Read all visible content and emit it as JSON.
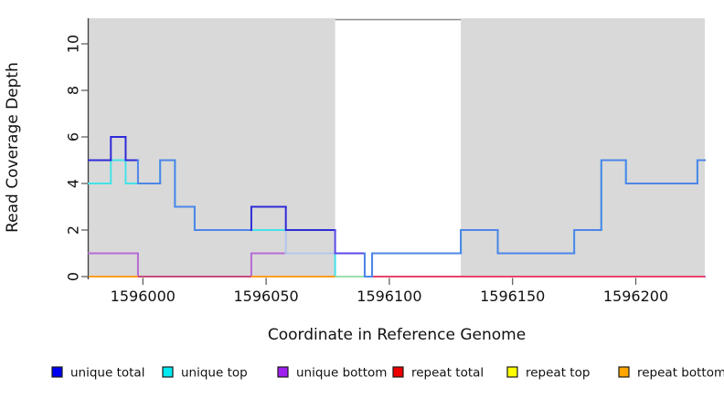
{
  "chart_data": {
    "type": "line",
    "subtype": "step-coverage",
    "title": "",
    "xlabel": "Coordinate in Reference Genome",
    "ylabel": "Read Coverage Depth",
    "xlim": [
      1595978,
      1596228
    ],
    "ylim": [
      0,
      11.1
    ],
    "x_ticks": [
      1596000,
      1596050,
      1596100,
      1596150,
      1596200
    ],
    "y_ticks": [
      0,
      2,
      4,
      6,
      8,
      10
    ],
    "grid": false,
    "legend_position": "bottom",
    "background": "#D9D9D9",
    "highlight_region": {
      "from": 1596078,
      "to": 1596129,
      "fill": "#FFFFFF",
      "border_top": "#8C8C8C"
    },
    "series": [
      {
        "name": "unique total",
        "color": "#0000F0",
        "points": [
          [
            1595978,
            5
          ],
          [
            1595987,
            6
          ],
          [
            1595993,
            5
          ],
          [
            1595998,
            4
          ],
          [
            1596007,
            5
          ],
          [
            1596013,
            3
          ],
          [
            1596021,
            2
          ],
          [
            1596044,
            3
          ],
          [
            1596058,
            2
          ],
          [
            1596078,
            1
          ],
          [
            1596090,
            0
          ],
          [
            1596093,
            1
          ],
          [
            1596129,
            2
          ],
          [
            1596144,
            1
          ],
          [
            1596175,
            2
          ],
          [
            1596186,
            5
          ],
          [
            1596196,
            4
          ],
          [
            1596225,
            5
          ]
        ]
      },
      {
        "name": "unique top",
        "color": "#00E8F0",
        "points": [
          [
            1595978,
            4
          ],
          [
            1595987,
            5
          ],
          [
            1595993,
            4
          ],
          [
            1596007,
            5
          ],
          [
            1596013,
            3
          ],
          [
            1596021,
            2
          ],
          [
            1596058,
            1
          ],
          [
            1596078,
            0
          ],
          [
            1596093,
            1
          ],
          [
            1596129,
            2
          ],
          [
            1596144,
            1
          ],
          [
            1596175,
            2
          ],
          [
            1596186,
            5
          ],
          [
            1596196,
            4
          ],
          [
            1596225,
            5
          ]
        ]
      },
      {
        "name": "unique bottom",
        "color": "#A020F0",
        "points": [
          [
            1595978,
            1
          ],
          [
            1595998,
            0
          ],
          [
            1596044,
            1
          ],
          [
            1596090,
            0
          ]
        ]
      },
      {
        "name": "repeat total",
        "color": "#EE0000",
        "points": [
          [
            1595978,
            0
          ]
        ]
      },
      {
        "name": "repeat top",
        "color": "#FFFF00",
        "points": [
          [
            1595978,
            0
          ]
        ]
      },
      {
        "name": "repeat bottom",
        "color": "#FFA500",
        "points": [
          [
            1595978,
            0
          ]
        ]
      }
    ],
    "rendered_colors": {
      "blue_line": "#2F2BD8",
      "blue_cyan_overlap": "#4D86E8",
      "blue_purple_overlap": "#5A4AE8",
      "cyan_line": "#44E2E8",
      "cyan_purple_overlap": "#B3C6EC",
      "purple_line": "#B56CD6",
      "zero_line_segments": [
        {
          "from": 1595978,
          "to": 1595998,
          "color": "#FF9C20"
        },
        {
          "from": 1595998,
          "to": 1596044,
          "color": "#C74B7B"
        },
        {
          "from": 1596044,
          "to": 1596078,
          "color": "#FF9C20"
        },
        {
          "from": 1596078,
          "to": 1596093,
          "color": "#9BDFAD"
        },
        {
          "from": 1596093,
          "to": 1596228,
          "color": "#E8436B"
        }
      ]
    }
  }
}
